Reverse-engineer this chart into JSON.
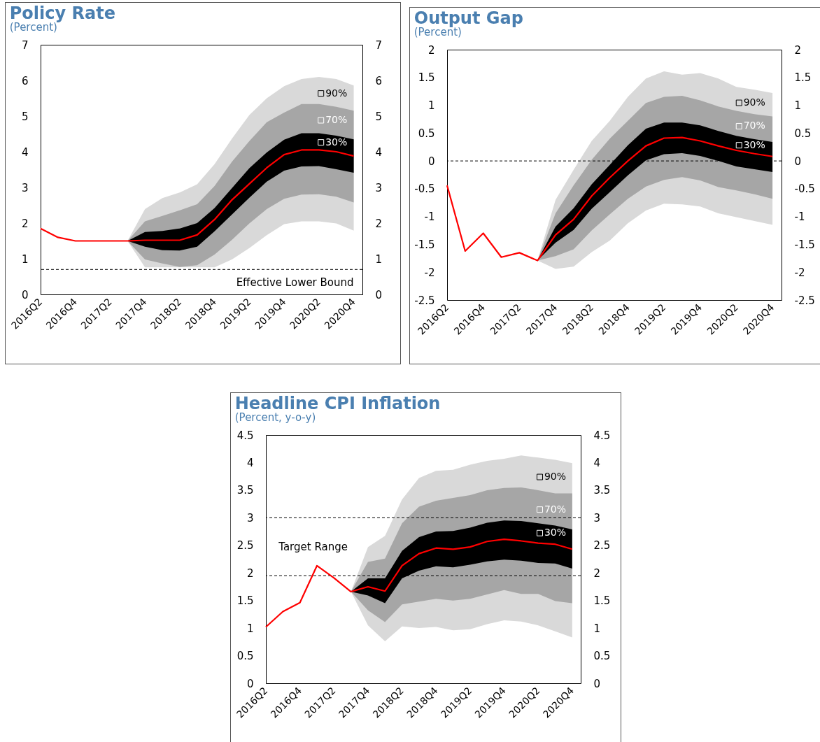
{
  "chart_data": [
    {
      "type": "line",
      "title": "Policy Rate",
      "subtitle": "(Percent)",
      "categories": [
        "2016Q2",
        null,
        "2016Q4",
        null,
        "2017Q2",
        null,
        "2017Q4",
        null,
        "2018Q2",
        null,
        "2018Q4",
        null,
        "2019Q2",
        null,
        "2019Q4",
        null,
        "2020Q2",
        null,
        "2020Q4"
      ],
      "ylim": [
        0,
        7
      ],
      "yticks": [
        0,
        1,
        2,
        3,
        4,
        5,
        6,
        7
      ],
      "y2lim": [
        0,
        7
      ],
      "y2ticks": [
        0,
        1,
        2,
        3,
        4,
        5,
        6,
        7
      ],
      "series": [
        {
          "name": "90%",
          "type": "area",
          "color": "#d9d9d9",
          "values": [
            null,
            null,
            null,
            null,
            null,
            null,
            null,
            null,
            null,
            null,
            null,
            null,
            null,
            null,
            null,
            null,
            null,
            null,
            null
          ],
          "upper": [
            null,
            null,
            null,
            null,
            null,
            1.5,
            2.39,
            2.7,
            2.86,
            3.09,
            3.65,
            4.37,
            5.03,
            5.5,
            5.84,
            6.04,
            6.1,
            6.04,
            5.86
          ],
          "lower": [
            null,
            null,
            null,
            null,
            null,
            1.5,
            0.76,
            0.76,
            0.76,
            0.76,
            0.76,
            0.98,
            1.3,
            1.66,
            1.97,
            2.05,
            2.05,
            1.99,
            1.79
          ]
        },
        {
          "name": "70%",
          "type": "area",
          "color": "#a6a6a6",
          "values": [
            null,
            null,
            null,
            null,
            null,
            null,
            null,
            null,
            null,
            null,
            null,
            null,
            null,
            null,
            null,
            null,
            null,
            null,
            null
          ],
          "upper": [
            null,
            null,
            null,
            null,
            null,
            1.5,
            2.05,
            2.2,
            2.36,
            2.53,
            3.04,
            3.72,
            4.3,
            4.83,
            5.1,
            5.34,
            5.34,
            5.26,
            5.15
          ],
          "lower": [
            null,
            null,
            null,
            null,
            null,
            1.5,
            0.98,
            0.87,
            0.77,
            0.82,
            1.12,
            1.53,
            1.99,
            2.39,
            2.68,
            2.8,
            2.81,
            2.74,
            2.58
          ]
        },
        {
          "name": "30%",
          "type": "area",
          "color": "#000000",
          "values": [
            null,
            null,
            null,
            null,
            null,
            null,
            null,
            null,
            null,
            null,
            null,
            null,
            null,
            null,
            null,
            null,
            null,
            null,
            null
          ],
          "upper": [
            null,
            null,
            null,
            null,
            null,
            1.5,
            1.75,
            1.78,
            1.85,
            2.0,
            2.42,
            2.98,
            3.54,
            3.98,
            4.34,
            4.52,
            4.52,
            4.45,
            4.35
          ],
          "lower": [
            null,
            null,
            null,
            null,
            null,
            1.5,
            1.34,
            1.24,
            1.23,
            1.34,
            1.77,
            2.24,
            2.71,
            3.16,
            3.47,
            3.59,
            3.6,
            3.51,
            3.41
          ]
        },
        {
          "type": "line",
          "color": "#ff0000",
          "values": [
            1.85,
            1.6,
            1.5,
            1.5,
            1.5,
            1.5,
            1.52,
            1.52,
            1.52,
            1.67,
            2.1,
            2.65,
            3.1,
            3.55,
            3.92,
            4.05,
            4.05,
            4.0,
            3.88
          ]
        }
      ],
      "ref_lines": [
        {
          "axis": "y",
          "value": 0.7,
          "label": "Effective Lower Bound",
          "color": "#000000",
          "line_style": "dashed"
        }
      ]
    },
    {
      "type": "line",
      "title": "Output Gap",
      "subtitle": "(Percent)",
      "categories": [
        "2016Q2",
        null,
        "2016Q4",
        null,
        "2017Q2",
        null,
        "2017Q4",
        null,
        "2018Q2",
        null,
        "2018Q4",
        null,
        "2019Q2",
        null,
        "2019Q4",
        null,
        "2020Q2",
        null,
        "2020Q4"
      ],
      "ylim": [
        -2.5,
        2
      ],
      "yticks": [
        -2.5,
        -2,
        -1.5,
        -1,
        -0.5,
        0,
        0.5,
        1,
        1.5,
        2
      ],
      "y2lim": [
        -2.5,
        2
      ],
      "y2ticks": [
        -2.5,
        -2,
        -1.5,
        -1,
        -0.5,
        0,
        0.5,
        1,
        1.5,
        2
      ],
      "series": [
        {
          "name": "90%",
          "type": "area",
          "color": "#d9d9d9",
          "values": [
            null,
            null,
            null,
            null,
            null,
            null,
            null,
            null,
            null,
            null,
            null,
            null,
            null,
            null,
            null,
            null,
            null,
            null,
            null
          ],
          "upper": [
            null,
            null,
            null,
            null,
            null,
            -1.79,
            -0.7,
            -0.16,
            0.36,
            0.72,
            1.15,
            1.48,
            1.61,
            1.55,
            1.58,
            1.48,
            1.33,
            1.28,
            1.22
          ],
          "lower": [
            null,
            null,
            null,
            null,
            null,
            -1.79,
            -1.94,
            -1.9,
            -1.64,
            -1.43,
            -1.12,
            -0.89,
            -0.77,
            -0.78,
            -0.82,
            -0.94,
            -1.01,
            -1.08,
            -1.15
          ]
        },
        {
          "name": "70%",
          "type": "area",
          "color": "#a6a6a6",
          "values": [
            null,
            null,
            null,
            null,
            null,
            null,
            null,
            null,
            null,
            null,
            null,
            null,
            null,
            null,
            null,
            null,
            null,
            null,
            null
          ],
          "upper": [
            null,
            null,
            null,
            null,
            null,
            -1.79,
            -0.94,
            -0.44,
            0.02,
            0.4,
            0.72,
            1.04,
            1.15,
            1.17,
            1.09,
            0.98,
            0.9,
            0.84,
            0.8
          ],
          "lower": [
            null,
            null,
            null,
            null,
            null,
            -1.79,
            -1.71,
            -1.59,
            -1.25,
            -0.96,
            -0.68,
            -0.46,
            -0.34,
            -0.29,
            -0.35,
            -0.47,
            -0.53,
            -0.6,
            -0.68
          ]
        },
        {
          "name": "30%",
          "type": "area",
          "color": "#000000",
          "values": [
            null,
            null,
            null,
            null,
            null,
            null,
            null,
            null,
            null,
            null,
            null,
            null,
            null,
            null,
            null,
            null,
            null,
            null,
            null
          ],
          "upper": [
            null,
            null,
            null,
            null,
            null,
            -1.79,
            -1.18,
            -0.85,
            -0.42,
            -0.07,
            0.28,
            0.58,
            0.69,
            0.69,
            0.64,
            0.54,
            0.45,
            0.39,
            0.34
          ],
          "lower": [
            null,
            null,
            null,
            null,
            null,
            -1.79,
            -1.47,
            -1.24,
            -0.86,
            -0.56,
            -0.26,
            0.01,
            0.12,
            0.14,
            0.09,
            0.0,
            -0.1,
            -0.15,
            -0.2
          ]
        },
        {
          "type": "line",
          "color": "#ff0000",
          "values": [
            -0.44,
            -1.62,
            -1.3,
            -1.73,
            -1.65,
            -1.79,
            -1.33,
            -1.05,
            -0.63,
            -0.3,
            0.0,
            0.27,
            0.41,
            0.42,
            0.36,
            0.27,
            0.19,
            0.13,
            0.08
          ]
        }
      ],
      "ref_lines": [
        {
          "axis": "y",
          "value": 0,
          "color": "#000000",
          "line_style": "dashed"
        }
      ]
    },
    {
      "type": "line",
      "title": "Headline CPI Inflation",
      "subtitle": "(Percent, y-o-y)",
      "categories": [
        "2016Q2",
        null,
        "2016Q4",
        null,
        "2017Q2",
        null,
        "2017Q4",
        null,
        "2018Q2",
        null,
        "2018Q4",
        null,
        "2019Q2",
        null,
        "2019Q4",
        null,
        "2020Q2",
        null,
        "2020Q4"
      ],
      "ylim": [
        0,
        4.5
      ],
      "yticks": [
        0,
        0.5,
        1,
        1.5,
        2,
        2.5,
        3,
        3.5,
        4,
        4.5
      ],
      "y2lim": [
        0,
        4.5
      ],
      "y2ticks": [
        0,
        0.5,
        1,
        1.5,
        2,
        2.5,
        3,
        3.5,
        4,
        4.5
      ],
      "series": [
        {
          "name": "90%",
          "type": "area",
          "color": "#d9d9d9",
          "values": [
            null,
            null,
            null,
            null,
            null,
            null,
            null,
            null,
            null,
            null,
            null,
            null,
            null,
            null,
            null,
            null,
            null,
            null,
            null
          ],
          "upper": [
            null,
            null,
            null,
            null,
            null,
            1.66,
            2.47,
            2.67,
            3.33,
            3.72,
            3.85,
            3.87,
            3.96,
            4.03,
            4.07,
            4.13,
            4.09,
            4.05,
            3.99
          ],
          "lower": [
            null,
            null,
            null,
            null,
            null,
            1.66,
            1.05,
            0.76,
            1.03,
            1.0,
            1.02,
            0.96,
            0.98,
            1.07,
            1.14,
            1.12,
            1.05,
            0.94,
            0.83
          ]
        },
        {
          "name": "70%",
          "type": "area",
          "color": "#a6a6a6",
          "values": [
            null,
            null,
            null,
            null,
            null,
            null,
            null,
            null,
            null,
            null,
            null,
            null,
            null,
            null,
            null,
            null,
            null,
            null,
            null
          ],
          "upper": [
            null,
            null,
            null,
            null,
            null,
            1.66,
            2.2,
            2.26,
            2.9,
            3.2,
            3.31,
            3.36,
            3.41,
            3.5,
            3.54,
            3.55,
            3.5,
            3.44,
            3.44
          ],
          "lower": [
            null,
            null,
            null,
            null,
            null,
            1.66,
            1.32,
            1.11,
            1.43,
            1.48,
            1.53,
            1.5,
            1.53,
            1.61,
            1.69,
            1.62,
            1.62,
            1.49,
            1.45
          ]
        },
        {
          "name": "30%",
          "type": "area",
          "color": "#000000",
          "values": [
            null,
            null,
            null,
            null,
            null,
            null,
            null,
            null,
            null,
            null,
            null,
            null,
            null,
            null,
            null,
            null,
            null,
            null,
            null
          ],
          "upper": [
            null,
            null,
            null,
            null,
            null,
            1.66,
            1.9,
            1.9,
            2.4,
            2.65,
            2.75,
            2.76,
            2.82,
            2.91,
            2.95,
            2.94,
            2.9,
            2.86,
            2.79
          ],
          "lower": [
            null,
            null,
            null,
            null,
            null,
            1.66,
            1.59,
            1.45,
            1.9,
            2.04,
            2.12,
            2.1,
            2.15,
            2.21,
            2.24,
            2.22,
            2.18,
            2.17,
            2.08
          ]
        },
        {
          "type": "line",
          "color": "#ff0000",
          "values": [
            1.02,
            1.3,
            1.46,
            2.13,
            1.91,
            1.66,
            1.75,
            1.67,
            2.13,
            2.35,
            2.45,
            2.43,
            2.47,
            2.57,
            2.61,
            2.58,
            2.54,
            2.52,
            2.43
          ]
        }
      ],
      "ref_lines": [
        {
          "axis": "y",
          "value": 3,
          "color": "#000000",
          "line_style": "dashed"
        },
        {
          "axis": "y",
          "value": 1.95,
          "color": "#000000",
          "line_style": "dashed"
        }
      ],
      "annotations": [
        "Target Range"
      ]
    }
  ]
}
